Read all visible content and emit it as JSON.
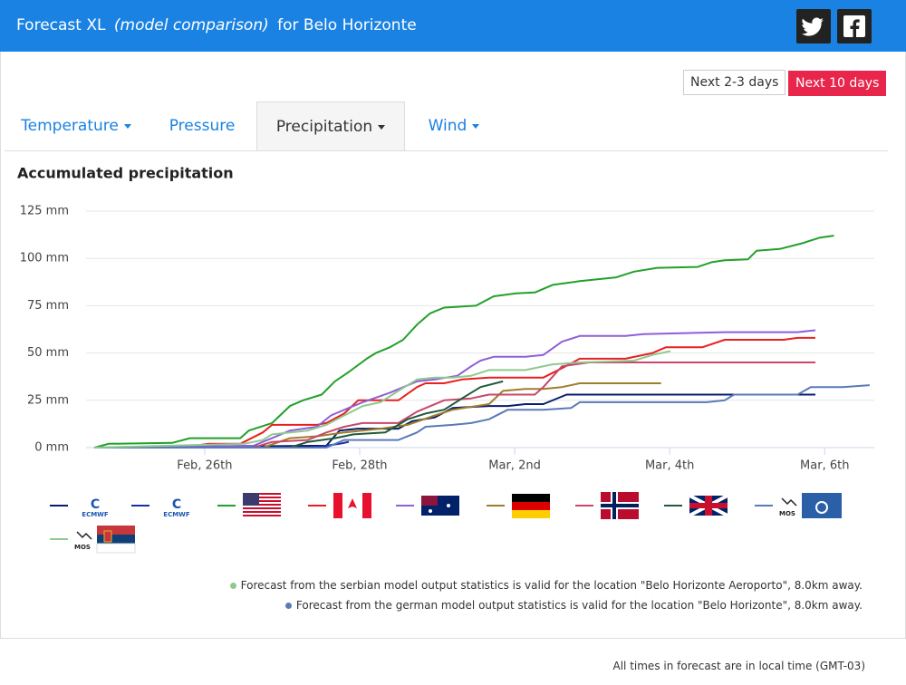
{
  "header": {
    "title_parts": [
      "Forecast XL",
      "(model comparison)",
      "for Belo Horizonte"
    ]
  },
  "buttons": [
    "Next 2-3 days",
    "Next 10 days"
  ],
  "tabs": [
    "Temperature",
    "Pressure",
    "Precipitation",
    "Wind"
  ],
  "chart_data": {
    "type": "line",
    "title": "Accumulated precipitation",
    "xlim": [
      -1.53,
      8.64
    ],
    "xticks": [
      {
        "value": 0,
        "label": "Feb, 26th"
      },
      {
        "value": 2,
        "label": "Feb, 28th"
      },
      {
        "value": 4,
        "label": "Mar, 2nd"
      },
      {
        "value": 6,
        "label": "Mar, 4th"
      },
      {
        "value": 8,
        "label": "Mar, 6th"
      }
    ],
    "ylim": [
      0,
      125
    ],
    "yticks": [
      {
        "value": 0,
        "label": "0 mm"
      },
      {
        "value": 25,
        "label": "25 mm"
      },
      {
        "value": 50,
        "label": "50 mm"
      },
      {
        "value": 75,
        "label": "75 mm"
      },
      {
        "value": 100,
        "label": "100 mm"
      },
      {
        "value": 125,
        "label": "125 mm"
      }
    ],
    "grid": true,
    "series": [
      {
        "name": "ECMWF",
        "color": "#071e6b",
        "x": [
          -1.42,
          1.57,
          1.74,
          1.98,
          2.5,
          2.68,
          2.97,
          3.2,
          3.67,
          3.91,
          4.14,
          4.37,
          4.67,
          5.54,
          7.88
        ],
        "values": [
          0,
          1,
          9,
          10,
          10,
          14,
          16,
          21,
          22,
          22,
          23,
          23,
          28,
          28,
          28
        ]
      },
      {
        "name": "ECMWF",
        "color": "#1b2ea8",
        "x": [
          -1.42,
          1.33,
          1.57,
          1.74,
          1.86
        ],
        "values": [
          0,
          0,
          1,
          2,
          3
        ]
      },
      {
        "color": "#22a02a",
        "x": [
          -1.42,
          -1.24,
          -0.42,
          -0.19,
          0.46,
          0.57,
          0.87,
          1.1,
          1.27,
          1.51,
          1.68,
          1.86,
          2.09,
          2.21,
          2.39,
          2.56,
          2.74,
          2.91,
          3.09,
          3.5,
          3.73,
          4.02,
          4.26,
          4.49,
          4.84,
          5.31,
          5.54,
          5.84,
          6.36,
          6.54,
          6.71,
          7.01,
          7.12,
          7.42,
          7.71,
          7.94,
          8.12
        ],
        "values": [
          0,
          2,
          2.5,
          5,
          5,
          9,
          13,
          22,
          25,
          28,
          35,
          40,
          47,
          50,
          53,
          57,
          65,
          71,
          74,
          75,
          80,
          81.5,
          82,
          86,
          88,
          90,
          93,
          95,
          95.5,
          98,
          99,
          99.5,
          104,
          105,
          108,
          111,
          112
        ]
      },
      {
        "color": "#e82020",
        "x": [
          -1.42,
          -0.3,
          0.05,
          0.46,
          0.75,
          0.87,
          1.45,
          1.57,
          1.8,
          1.98,
          2.5,
          2.74,
          2.85,
          3.09,
          3.32,
          3.67,
          4.37,
          4.61,
          4.84,
          5.43,
          5.78,
          5.95,
          6.42,
          6.71,
          7.47,
          7.65,
          7.88
        ],
        "values": [
          0,
          0,
          2,
          2,
          8,
          12,
          12,
          13,
          18,
          25,
          25,
          32,
          34,
          34,
          36,
          37,
          37,
          42,
          47,
          47,
          50,
          53,
          53,
          57,
          57,
          58,
          58
        ]
      },
      {
        "color": "#8e5fd6",
        "x": [
          -1.42,
          0.63,
          0.87,
          1.1,
          1.45,
          1.63,
          1.86,
          2.04,
          2.39,
          2.74,
          2.97,
          3.26,
          3.44,
          3.56,
          3.73,
          4.14,
          4.37,
          4.61,
          4.84,
          5.43,
          5.66,
          6.71,
          7.65,
          7.88
        ],
        "values": [
          0,
          1,
          5,
          9,
          11,
          17,
          21,
          24,
          29,
          35,
          36,
          38,
          43,
          46,
          48,
          48,
          49,
          56,
          59,
          59,
          60,
          61,
          61,
          62
        ]
      },
      {
        "color": "#a07d2b",
        "x": [
          -1.42,
          0.75,
          1.1,
          1.45,
          1.8,
          2.27,
          2.62,
          2.97,
          3.2,
          3.67,
          3.85,
          4.14,
          4.37,
          4.61,
          4.84,
          5.54,
          5.89
        ],
        "values": [
          0,
          0,
          5,
          6,
          8,
          10,
          12,
          17,
          20,
          23,
          30,
          31,
          31,
          32,
          34,
          34,
          34
        ]
      },
      {
        "color": "#c8476a",
        "x": [
          -1.42,
          0.63,
          0.87,
          1.33,
          1.57,
          1.8,
          2.04,
          2.5,
          2.74,
          3.09,
          3.44,
          3.67,
          4.26,
          4.37,
          4.61,
          4.96,
          5.54,
          7.88
        ],
        "values": [
          0,
          0,
          3,
          4,
          8,
          11,
          13,
          13,
          19,
          25,
          26,
          28,
          28,
          32,
          43,
          45,
          45,
          45
        ]
      },
      {
        "color": "#205a3a",
        "x": [
          -1.42,
          1.1,
          1.33,
          1.68,
          1.92,
          2.33,
          2.5,
          2.62,
          2.85,
          3.09,
          3.32,
          3.56,
          3.85
        ],
        "values": [
          0,
          0,
          3,
          5,
          7,
          8,
          12,
          15,
          18,
          20,
          26,
          32,
          35
        ]
      },
      {
        "name": "MOS",
        "color": "#5a7ab8",
        "x": [
          -1.42,
          1.57,
          1.8,
          2.5,
          2.74,
          2.85,
          3.2,
          3.44,
          3.67,
          3.91,
          4.37,
          4.73,
          4.84,
          6.48,
          6.71,
          6.83,
          7.65,
          7.82,
          8.23,
          8.58
        ],
        "values": [
          0,
          0,
          4,
          4,
          8,
          11,
          12,
          13,
          15,
          20,
          20,
          21,
          24,
          24,
          25,
          28,
          28,
          32,
          32,
          33
        ]
      },
      {
        "name": "MOS",
        "color": "#8fc98f",
        "x": [
          -1.42,
          0.51,
          0.75,
          0.87,
          1.33,
          1.57,
          1.8,
          2.04,
          2.27,
          2.5,
          2.74,
          2.97,
          3.2,
          3.44,
          3.67,
          4.14,
          4.49,
          4.84,
          5.54,
          5.78,
          6.01
        ],
        "values": [
          0,
          2,
          4,
          7,
          9,
          12,
          17,
          22,
          24,
          30,
          36,
          37,
          37,
          38,
          41,
          41,
          44,
          45,
          46,
          49,
          51
        ]
      }
    ]
  },
  "notes": [
    "Forecast from the serbian model output statistics is valid for the location \"Belo Horizonte Aeroporto\", 8.0km away.",
    "Forecast from the german model output statistics is valid for the location \"Belo Horizonte\", 8.0km away."
  ],
  "footer": "All times in forecast are in local time (GMT-03)"
}
